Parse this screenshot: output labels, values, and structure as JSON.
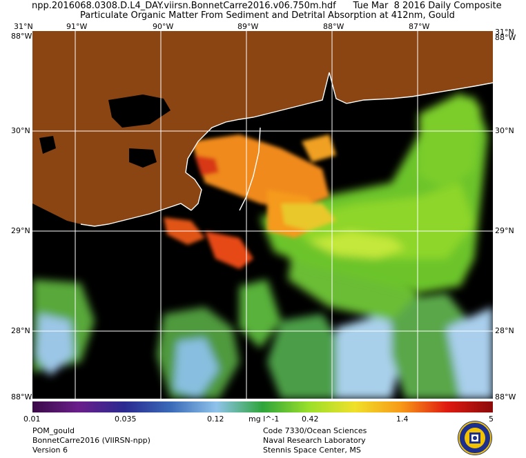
{
  "header": {
    "line1": "npp.2016068.0308.D.L4_DAY.viirsn.BonnetCarre2016.v06.750m.hdf      Tue Mar  8 2016 Daily Composite",
    "line2": "Particulate Organic Matter From Sediment and Detrital Absorption at 412nm, Gould"
  },
  "map": {
    "top_lon_labels": [
      "91°W",
      "90°W",
      "89°W",
      "88°W",
      "87°W"
    ],
    "lat_labels": [
      "30°N",
      "29°N",
      "28°N"
    ],
    "corner_labels": {
      "top_left_lat": "31°N",
      "top_left_lon": "88°W",
      "top_right_lat": "31°N",
      "top_right_lon": "88°W",
      "bottom_left": "88°W",
      "bottom_right": "88°W"
    },
    "colors": {
      "land": "#8b4513",
      "nodata": "#000000",
      "grid": "#ffffff",
      "coast": "#ffffff"
    }
  },
  "colorbar": {
    "ticks": [
      "0.01",
      "0.035",
      "0.12",
      "0.42",
      "1.4",
      "5"
    ],
    "units": "mg l^-1",
    "stops": [
      "#3a0a48",
      "#6a1e8a",
      "#2a2a90",
      "#3a6ab8",
      "#8fc3ea",
      "#2ea43a",
      "#9adf2a",
      "#f0e02a",
      "#f79a18",
      "#e01a10",
      "#8a0a0a"
    ]
  },
  "footer": {
    "left": [
      "POM_gould",
      "BonnetCarre2016 (VIIRSN-npp)",
      "Version 6"
    ],
    "right": [
      "Code 7330/Ocean Sciences",
      "Naval Research Laboratory",
      "Stennis Space Center, MS"
    ]
  }
}
